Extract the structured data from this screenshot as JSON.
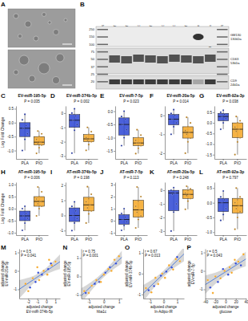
{
  "figure": {
    "panel_labels": [
      "A",
      "B",
      "C",
      "D",
      "E",
      "F",
      "G",
      "H",
      "I",
      "J",
      "K",
      "L",
      "M",
      "N",
      "O",
      "P"
    ],
    "blot": {
      "lanes": [
        "MARKER",
        "210-POST",
        "223-POST",
        "220-PRE",
        "235-POST",
        "229-PRE",
        "228-PRE",
        "228-POST",
        "Adip. lysate",
        "HEK Exosomes",
        "MARKER"
      ],
      "markers": [
        250,
        150,
        100,
        75,
        50,
        37,
        25,
        20
      ],
      "targets": [
        [
          "GM130",
          "130kDa"
        ],
        [
          "CD63",
          "53kDa"
        ],
        [
          "CD9",
          "24kDa"
        ]
      ]
    }
  },
  "chart_data": [
    {
      "type": "box",
      "title": "EV-miR-195-5p",
      "subtitle": "P = 0.035",
      "ylabel": "Log Fold Change",
      "categories": [
        "PLA",
        "PIO"
      ],
      "colors": [
        "#2b45d4",
        "#f5a623"
      ],
      "values": [
        [
          -1.0,
          -0.6,
          -0.4,
          -0.2,
          -0.1,
          0.1,
          0.3
        ],
        [
          -1.1,
          -0.9,
          -0.8,
          -0.75,
          -0.7,
          -0.6,
          -0.5,
          -0.4,
          -0.3
        ]
      ],
      "whisker_low": [
        -1.0,
        -1.1
      ],
      "q1": [
        -0.5,
        -0.8
      ],
      "median": [
        -0.2,
        -0.7
      ],
      "q3": [
        0.0,
        -0.5
      ],
      "whisker_high": [
        0.3,
        -0.3
      ],
      "ylim": [
        -1.3,
        0.6
      ],
      "yticks": [
        {
          "value": -1,
          "label": "-1.0"
        },
        -0.5,
        {
          "value": 0,
          "label": "0.0"
        },
        0.5
      ]
    },
    {
      "type": "box",
      "title": "EV-miR-374b-5p",
      "subtitle": "P = 0.002",
      "categories": [
        "PLA",
        "PIO"
      ],
      "colors": [
        "#2b45d4",
        "#f5a623"
      ],
      "values": [
        [
          -2.8,
          -1.2,
          -0.8,
          -0.5,
          -0.2,
          0.0,
          0.3
        ],
        [
          -2.6,
          -2.2,
          -2.0,
          -1.9,
          -1.8,
          -1.7,
          -1.5,
          -1.3,
          -1.0
        ]
      ],
      "whisker_low": [
        -2.8,
        -2.6
      ],
      "q1": [
        -1.0,
        -2.0
      ],
      "median": [
        -0.5,
        -1.8
      ],
      "q3": [
        -0.1,
        -1.5
      ],
      "whisker_high": [
        0.3,
        -1.0
      ],
      "ylim": [
        -3.2,
        0.5
      ],
      "yticks": [
        -3,
        -2,
        -1,
        0
      ]
    },
    {
      "type": "box",
      "title": "EV-miR-7-5p",
      "subtitle": "P = 0.023",
      "categories": [
        "PLA",
        "PIO"
      ],
      "colors": [
        "#2b45d4",
        "#f5a623"
      ],
      "values": [
        [
          -1.3,
          -1.0,
          -0.7,
          -0.5,
          -0.3,
          -0.2,
          0.0
        ],
        [
          -1.6,
          -1.4,
          -1.3,
          -1.2,
          -1.2,
          -1.1,
          -1.0,
          -0.9,
          -0.7
        ]
      ],
      "whisker_low": [
        -1.3,
        -1.6
      ],
      "q1": [
        -0.9,
        -1.3
      ],
      "median": [
        -0.5,
        -1.2
      ],
      "q3": [
        -0.25,
        -1.0
      ],
      "whisker_high": [
        0.0,
        -0.7
      ],
      "ylim": [
        -1.8,
        0.2
      ],
      "yticks": [
        -1.5,
        {
          "value": -1,
          "label": "-1.0"
        },
        -0.5,
        {
          "value": 0,
          "label": "0.0"
        }
      ]
    },
    {
      "type": "box",
      "title": "EV-miR-20a-5p",
      "subtitle": "P = 0.014",
      "categories": [
        "PLA",
        "PIO"
      ],
      "colors": [
        "#2b45d4",
        "#f5a623"
      ],
      "values": [
        [
          -1.0,
          -0.6,
          -0.4,
          -0.2,
          0.0,
          0.1,
          0.3
        ],
        [
          -2.0,
          -1.4,
          -1.2,
          -1.0,
          -0.9,
          -0.8,
          -0.6,
          -0.4,
          -0.1
        ]
      ],
      "whisker_low": [
        -1.0,
        -2.0
      ],
      "q1": [
        -0.5,
        -1.2
      ],
      "median": [
        -0.2,
        -0.9
      ],
      "q3": [
        0.05,
        -0.6
      ],
      "whisker_high": [
        0.3,
        -0.1
      ],
      "ylim": [
        -2.3,
        0.5
      ],
      "yticks": [
        -2,
        -1,
        0
      ]
    },
    {
      "type": "box",
      "title": "EV-miR-92a-3p",
      "subtitle": "P = 0.038",
      "categories": [
        "PLA",
        "PIO"
      ],
      "colors": [
        "#2b45d4",
        "#f5a623"
      ],
      "values": [
        [
          -0.3,
          0.0,
          0.2,
          0.3,
          0.4,
          0.5,
          0.6
        ],
        [
          -1.5,
          -0.9,
          -0.7,
          -0.4,
          -0.3,
          -0.2,
          0.0,
          0.1,
          0.3
        ]
      ],
      "whisker_low": [
        -0.3,
        -1.5
      ],
      "q1": [
        0.1,
        -0.7
      ],
      "median": [
        0.3,
        -0.3
      ],
      "q3": [
        0.45,
        0.0
      ],
      "whisker_high": [
        0.6,
        0.3
      ],
      "ylim": [
        -1.7,
        0.8
      ],
      "yticks": [
        -1.5,
        {
          "value": -1,
          "label": "-1.0"
        },
        -0.5,
        {
          "value": 0,
          "label": "0.0"
        },
        0.5
      ]
    },
    {
      "type": "box",
      "title": "AT-miR-195-5p",
      "subtitle": "P = 0.006",
      "ylabel": "Log Fold Change",
      "categories": [
        "PLA",
        "PIO"
      ],
      "colors": [
        "#2b45d4",
        "#f5a623"
      ],
      "values": [
        [
          -0.9,
          -0.6,
          -0.4,
          -0.3,
          -0.2,
          0.0,
          0.1
        ],
        [
          -0.3,
          0.0,
          0.1,
          0.2,
          0.3,
          0.4,
          0.5,
          0.7,
          0.9
        ]
      ],
      "whisker_low": [
        -0.9,
        -0.3
      ],
      "q1": [
        -0.5,
        0.1
      ],
      "median": [
        -0.3,
        0.3
      ],
      "q3": [
        -0.1,
        0.5
      ],
      "whisker_high": [
        0.1,
        0.9
      ],
      "ylim": [
        -1.1,
        1.1
      ],
      "yticks": [
        {
          "value": -1,
          "label": "-1.0"
        },
        -0.5,
        {
          "value": 0,
          "label": "0.0"
        },
        0.5,
        {
          "value": 1,
          "label": "1.0"
        }
      ]
    },
    {
      "type": "box",
      "title": "AT-miR-374b-5p",
      "subtitle": "P = 0.198",
      "categories": [
        "PLA",
        "PIO"
      ],
      "colors": [
        "#2b45d4",
        "#f5a623"
      ],
      "values": [
        [
          -1.0,
          -0.5,
          -0.2,
          0.0,
          0.3,
          0.6,
          0.9
        ],
        [
          -0.5,
          0.1,
          0.3,
          0.5,
          0.7,
          0.9,
          1.1,
          1.4,
          1.9
        ]
      ],
      "whisker_low": [
        -1.0,
        -0.5
      ],
      "q1": [
        -0.4,
        0.3
      ],
      "median": [
        0.0,
        0.7
      ],
      "q3": [
        0.5,
        1.2
      ],
      "whisker_high": [
        0.9,
        1.9
      ],
      "ylim": [
        -1.3,
        2.2
      ],
      "yticks": [
        -1,
        0,
        1,
        2
      ]
    },
    {
      "type": "box",
      "title": "AT-miR-7-5p",
      "subtitle": "P = 0.113",
      "categories": [
        "PLA",
        "PIO"
      ],
      "colors": [
        "#2b45d4",
        "#f5a623"
      ],
      "values": [
        [
          -0.8,
          -0.4,
          -0.1,
          0.1,
          0.3,
          0.6,
          1.0
        ],
        [
          -0.6,
          0.1,
          0.4,
          0.7,
          0.9,
          1.2,
          1.6,
          2.0,
          2.8
        ]
      ],
      "whisker_low": [
        -0.8,
        -0.6
      ],
      "q1": [
        -0.3,
        0.3
      ],
      "median": [
        0.1,
        0.9
      ],
      "q3": [
        0.5,
        1.7
      ],
      "whisker_high": [
        1.0,
        2.8
      ],
      "ylim": [
        -1.2,
        3.2
      ],
      "yticks": [
        -1,
        0,
        1,
        2,
        3
      ]
    },
    {
      "type": "box",
      "title": "AT-miR-20a-5p",
      "subtitle": "P = 0.248",
      "categories": [
        "PLA",
        "PIO"
      ],
      "colors": [
        "#2b45d4",
        "#f5a623"
      ],
      "values": [
        [
          -3.0,
          -1.6,
          -1.0,
          -0.3,
          -0.2,
          0.0,
          0.2
        ],
        [
          -1.4,
          -0.8,
          -0.6,
          -0.4,
          -0.3,
          -0.2,
          0.0,
          0.1,
          0.3
        ]
      ],
      "whisker_low": [
        -3.0,
        -1.4
      ],
      "q1": [
        -1.5,
        -0.6
      ],
      "median": [
        -0.2,
        -0.3
      ],
      "q3": [
        0.0,
        0.05
      ],
      "whisker_high": [
        0.2,
        0.3
      ],
      "ylim": [
        -3.3,
        0.6
      ],
      "yticks": [
        -3,
        -2,
        -1,
        0
      ]
    },
    {
      "type": "box",
      "title": "AT-miR-92a-3p",
      "subtitle": "P = 0.797",
      "categories": [
        "PLA",
        "PIO"
      ],
      "colors": [
        "#2b45d4",
        "#f5a623"
      ],
      "values": [
        [
          -0.6,
          -0.4,
          -0.2,
          0.0,
          0.1,
          0.2,
          0.4
        ],
        [
          -0.9,
          -0.5,
          -0.3,
          -0.2,
          -0.1,
          0.0,
          0.1,
          0.2,
          0.5
        ]
      ],
      "whisker_low": [
        -0.6,
        -0.9
      ],
      "q1": [
        -0.3,
        -0.35
      ],
      "median": [
        0.0,
        -0.1
      ],
      "q3": [
        0.15,
        0.15
      ],
      "whisker_high": [
        0.4,
        0.5
      ],
      "ylim": [
        -1.1,
        0.7
      ],
      "yticks": [
        {
          "value": -1,
          "label": "-1.0"
        },
        -0.5,
        {
          "value": 0,
          "label": "0.0"
        },
        0.5
      ]
    },
    {
      "type": "scatter",
      "xlabel": [
        "adjusted change",
        "EV-miR-374b-5p"
      ],
      "ylabel": [
        "adjusted change",
        "EV-miR-20a-5p"
      ],
      "annotations": [
        "r = 0.5",
        "P = 0.041"
      ],
      "series": [
        {
          "color": "#2b45d4",
          "x": [
            -1.8,
            -1.2,
            -0.5,
            0.2,
            0.5,
            -0.9
          ],
          "values": [
            -0.9,
            -0.6,
            -0.2,
            0.1,
            0.4,
            -0.1
          ]
        },
        {
          "color": "#f5a623",
          "x": [
            -2.3,
            -1.5,
            -0.8,
            -0.3,
            0.1,
            0.6,
            1.0,
            -1.0,
            0.3,
            -2.0
          ],
          "values": [
            -0.7,
            -0.4,
            -0.5,
            0.0,
            -0.2,
            0.3,
            0.5,
            0.2,
            0.6,
            -1.1
          ]
        }
      ],
      "fit": {
        "x": [
          -3,
          -0.75,
          1.5
        ],
        "y": [
          -1.0,
          -0.25,
          0.5
        ],
        "lower": [
          -1.5,
          -0.4,
          0.1
        ],
        "upper": [
          -0.5,
          -0.1,
          0.9
        ]
      },
      "xlim": [
        -3,
        1.5
      ],
      "xticks": [
        -2,
        -1,
        0,
        1
      ],
      "ylim": [
        -1.5,
        1.2
      ],
      "yticks": [
        -1,
        0,
        1
      ]
    },
    {
      "type": "scatter",
      "xlabel": [
        "adjusted change",
        "hba1c"
      ],
      "ylabel": [
        "adjusted change",
        "EV-miR-195-5p"
      ],
      "annotations": [
        "r = 0.75",
        "P = 0.001"
      ],
      "series": [
        {
          "color": "#2b45d4",
          "x": [
            -1.2,
            -0.6,
            -0.3,
            0.1,
            0.4,
            0.8
          ],
          "values": [
            -0.9,
            -0.4,
            -0.3,
            0.2,
            0.5,
            0.7
          ]
        },
        {
          "color": "#f5a623",
          "x": [
            -1.3,
            -1.0,
            -0.8,
            -0.5,
            -0.2,
            0.0,
            0.3,
            0.5,
            0.7,
            1.0
          ],
          "values": [
            -0.8,
            -0.9,
            -0.5,
            -0.2,
            -0.3,
            0.1,
            0.4,
            0.3,
            0.9,
            1.1
          ]
        }
      ],
      "fit": {
        "x": [
          -1.5,
          -0.15,
          1.2
        ],
        "y": [
          -1.05,
          0.0,
          1.05
        ],
        "lower": [
          -1.45,
          -0.15,
          0.7
        ],
        "upper": [
          -0.65,
          0.15,
          1.4
        ]
      },
      "xlim": [
        -1.5,
        1.2
      ],
      "xticks": [
        -1,
        0,
        1
      ],
      "ylim": [
        -1.2,
        1.5
      ],
      "yticks": [
        -1,
        0,
        1
      ]
    },
    {
      "type": "scatter",
      "xlabel": [
        "adjusted change",
        "ln-Adipo-IR"
      ],
      "ylabel": [
        "adjusted change",
        "EV-miR-374b-5p"
      ],
      "annotations": [
        "r = 0.67",
        "P = 0.013"
      ],
      "series": [
        {
          "color": "#2b45d4",
          "x": [
            -1.1,
            -0.7,
            -0.2,
            0.2,
            0.6,
            1.0
          ],
          "values": [
            -0.8,
            -0.6,
            -0.1,
            0.1,
            0.3,
            0.8
          ]
        },
        {
          "color": "#f5a623",
          "x": [
            -1.3,
            -0.9,
            -0.6,
            -0.4,
            -0.1,
            0.1,
            0.4,
            0.7,
            0.9,
            1.2
          ],
          "values": [
            -0.7,
            -0.9,
            -0.2,
            -0.5,
            0.0,
            -0.2,
            0.4,
            0.2,
            0.7,
            0.6
          ]
        }
      ],
      "fit": {
        "x": [
          -1.5,
          0,
          1.5
        ],
        "y": [
          -0.95,
          0.0,
          0.95
        ],
        "lower": [
          -1.35,
          -0.15,
          0.6
        ],
        "upper": [
          -0.55,
          0.15,
          1.3
        ]
      },
      "xlim": [
        -1.5,
        1.5
      ],
      "xticks": [
        -1,
        0,
        1
      ],
      "ylim": [
        -1.2,
        1.2
      ],
      "yticks": [
        -1,
        0,
        1
      ]
    },
    {
      "type": "scatter",
      "xlabel": [
        "adjusted change",
        "glucose"
      ],
      "ylabel": [
        "adjusted change",
        "EV-miR-7-5p"
      ],
      "annotations": [
        "r = 0.5",
        "P = 0.043"
      ],
      "series": [
        {
          "color": "#2b45d4",
          "x": [
            -30,
            -15,
            -5,
            5,
            20,
            30
          ],
          "values": [
            -0.9,
            -0.6,
            0.1,
            -0.2,
            0.4,
            0.3
          ]
        },
        {
          "color": "#f5a623",
          "x": [
            -35,
            -25,
            -20,
            -10,
            -2,
            8,
            12,
            18,
            25,
            35
          ],
          "values": [
            -0.5,
            -1.2,
            -0.3,
            -0.4,
            0.0,
            0.2,
            -0.1,
            0.6,
            0.5,
            0.9
          ]
        }
      ],
      "fit": {
        "x": [
          -40,
          0,
          40
        ],
        "y": [
          -0.75,
          -0.05,
          0.65
        ],
        "lower": [
          -1.25,
          -0.25,
          0.25
        ],
        "upper": [
          -0.25,
          0.15,
          1.05
        ]
      },
      "xlim": [
        -40,
        40
      ],
      "xticks": [
        -40,
        -20,
        0,
        20,
        40
      ],
      "ylim": [
        -1.5,
        1.2
      ],
      "yticks": [
        -1,
        0,
        1
      ]
    }
  ]
}
